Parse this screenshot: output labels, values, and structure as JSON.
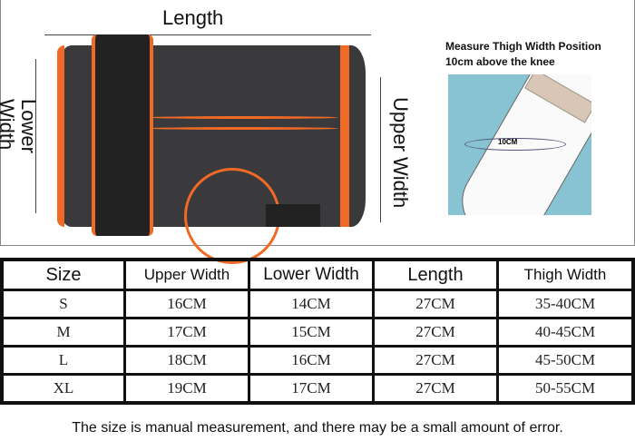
{
  "diagram": {
    "length": "Length",
    "lower_width": "Lower Width",
    "upper_width": "Upper Width",
    "thigh_title_1": "Measure Thigh Width Position",
    "thigh_title_2": "10cm above the knee",
    "knee_marker": "10CM"
  },
  "colors": {
    "sleeve": "#3a3a3c",
    "accent": "#f06a25",
    "knee_bg": "#88c3d3"
  },
  "table": {
    "headers": [
      "Size",
      "Upper Width",
      "Lower Width",
      "Length",
      "Thigh Width"
    ],
    "rows": [
      [
        "S",
        "16CM",
        "14CM",
        "27CM",
        "35-40CM"
      ],
      [
        "M",
        "17CM",
        "15CM",
        "27CM",
        "40-45CM"
      ],
      [
        "L",
        "18CM",
        "16CM",
        "27CM",
        "45-50CM"
      ],
      [
        "XL",
        "19CM",
        "17CM",
        "27CM",
        "50-55CM"
      ]
    ]
  },
  "note": "The size is manual measurement, and there may be a small amount of error."
}
